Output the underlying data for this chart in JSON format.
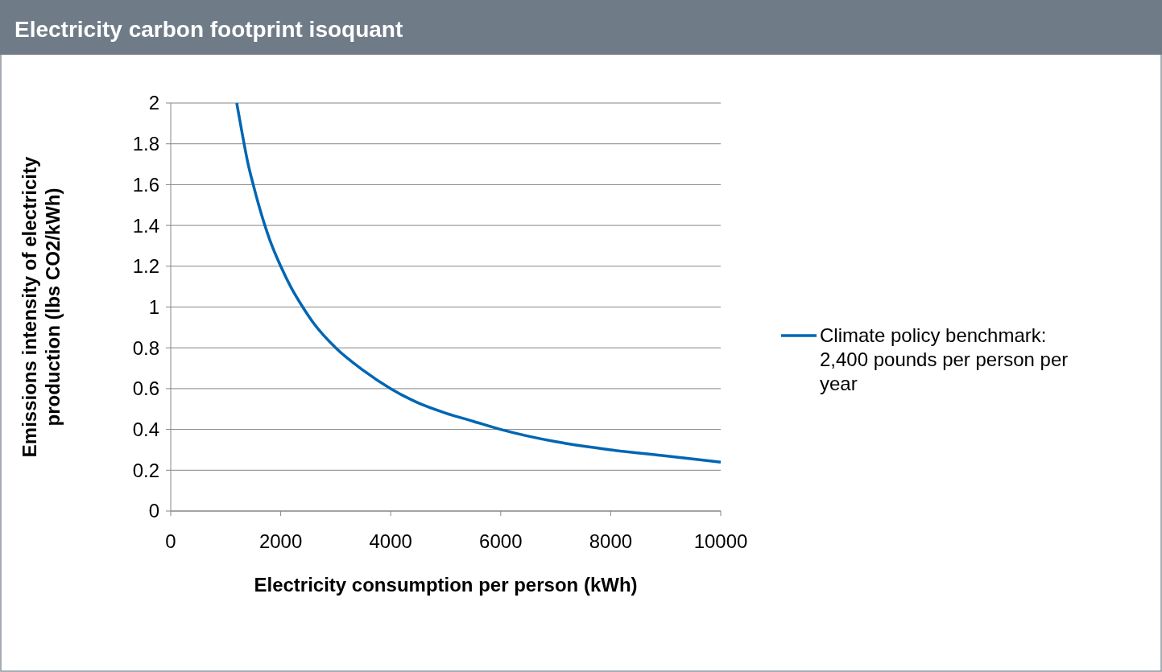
{
  "chart_data": {
    "type": "line",
    "title": "Electricity carbon footprint isoquant",
    "xlabel": "Electricity consumption per person (kWh)",
    "ylabel": "Emissions intensity of electricity production (lbs CO2/kWh)",
    "series": [
      {
        "name": "Climate policy benchmark: 2,400 pounds per person per year",
        "color": "#0066b3",
        "x": [
          1200,
          1300,
          1400,
          1500,
          1600,
          1800,
          2000,
          2200,
          2400,
          2600,
          3000,
          3500,
          4000,
          4500,
          5000,
          5500,
          6000,
          7000,
          8000,
          9000,
          10000
        ],
        "values": [
          2,
          1.85,
          1.71,
          1.6,
          1.5,
          1.33,
          1.2,
          1.09,
          1,
          0.92,
          0.8,
          0.69,
          0.6,
          0.53,
          0.48,
          0.44,
          0.4,
          0.34,
          0.3,
          0.27,
          0.24
        ]
      }
    ],
    "xlim": [
      0,
      10000
    ],
    "xticks": [
      0,
      2000,
      4000,
      6000,
      8000,
      10000
    ],
    "ylim": [
      0,
      2
    ],
    "yticks": [
      0,
      0.2,
      0.4,
      0.6,
      0.8,
      1,
      1.2,
      1.4,
      1.6,
      1.8,
      2
    ],
    "grid": "y",
    "legend": "right",
    "marker": "none",
    "line_style": "solid"
  }
}
